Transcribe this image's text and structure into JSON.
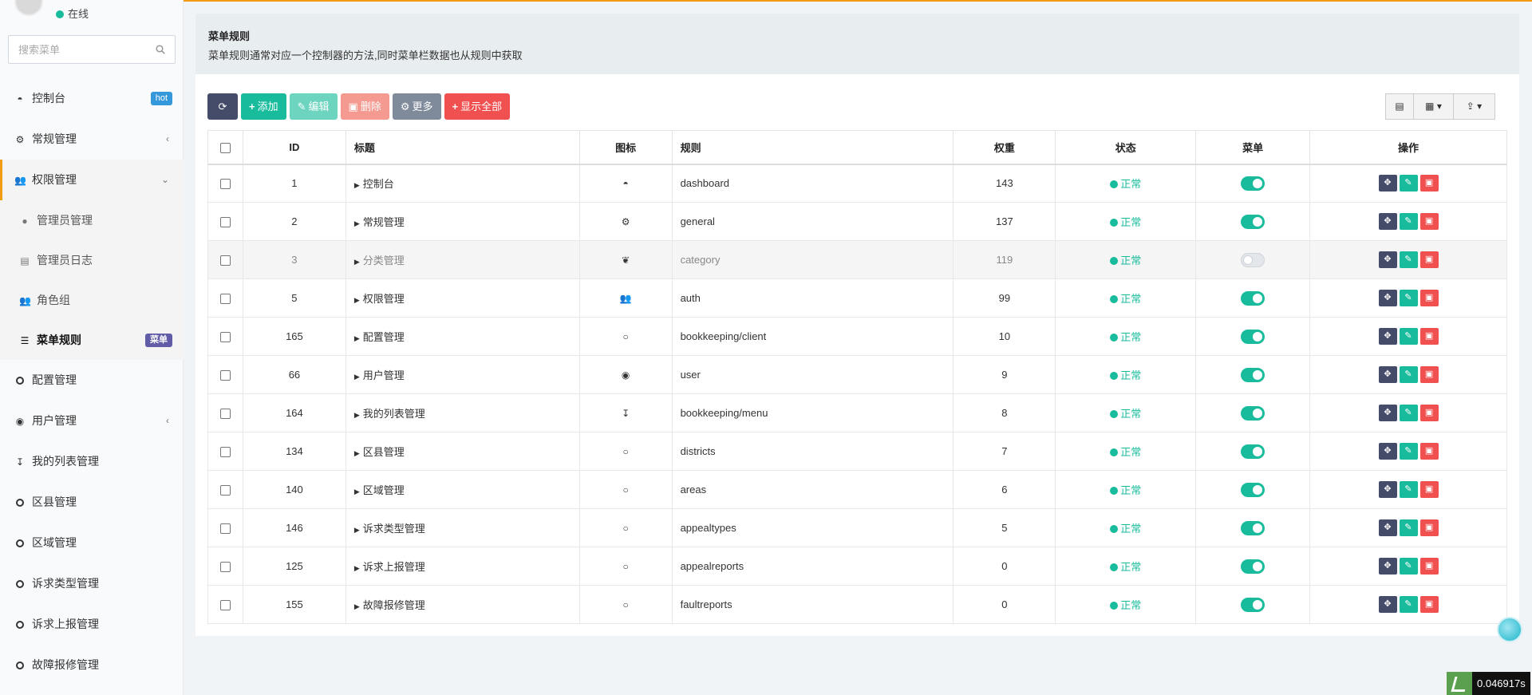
{
  "status": {
    "online": "在线"
  },
  "search": {
    "placeholder": "搜索菜单"
  },
  "sidebar": {
    "items": [
      {
        "label": "控制台",
        "badge": "hot",
        "icon": "dashboard-icon"
      },
      {
        "label": "常规管理",
        "arrow": "‹",
        "icon": "cogs-icon"
      },
      {
        "label": "权限管理",
        "arrow": "⌄",
        "icon": "group-icon"
      },
      {
        "label": "配置管理",
        "icon": "circle-icon"
      },
      {
        "label": "用户管理",
        "arrow": "‹",
        "icon": "user-circle-icon"
      },
      {
        "label": "我的列表管理",
        "icon": "sort-numeric-icon"
      },
      {
        "label": "区县管理",
        "icon": "circle-icon"
      },
      {
        "label": "区域管理",
        "icon": "circle-icon"
      },
      {
        "label": "诉求类型管理",
        "icon": "circle-icon"
      },
      {
        "label": "诉求上报管理",
        "icon": "circle-icon"
      },
      {
        "label": "故障报修管理",
        "icon": "circle-icon"
      }
    ],
    "sub": [
      {
        "label": "管理员管理",
        "icon": "user-icon"
      },
      {
        "label": "管理员日志",
        "icon": "list-alt-icon"
      },
      {
        "label": "角色组",
        "icon": "group-icon"
      },
      {
        "label": "菜单规则",
        "badge": "菜单",
        "icon": "bars-icon"
      }
    ]
  },
  "panel": {
    "title": "菜单规则",
    "desc": "菜单规则通常对应一个控制器的方法,同时菜单栏数据也从规则中获取"
  },
  "toolbar": {
    "add": "添加",
    "edit": "编辑",
    "delete": "删除",
    "more": "更多",
    "show_all": "显示全部"
  },
  "table": {
    "headers": {
      "id": "ID",
      "title": "标题",
      "icon": "图标",
      "rule": "规则",
      "weigh": "权重",
      "status": "状态",
      "menu": "菜单",
      "ops": "操作"
    },
    "rows": [
      {
        "id": "1",
        "title": "控制台",
        "icon": "dashboard-icon",
        "glyph": "◓",
        "rule": "dashboard",
        "weigh": "143",
        "status": "正常",
        "menu": true
      },
      {
        "id": "2",
        "title": "常规管理",
        "icon": "cogs-icon",
        "glyph": "⚙",
        "rule": "general",
        "weigh": "137",
        "status": "正常",
        "menu": true
      },
      {
        "id": "3",
        "title": "分类管理",
        "icon": "leaf-icon",
        "glyph": "❦",
        "rule": "category",
        "weigh": "119",
        "status": "正常",
        "menu": false
      },
      {
        "id": "5",
        "title": "权限管理",
        "icon": "group-icon",
        "glyph": "👥",
        "rule": "auth",
        "weigh": "99",
        "status": "正常",
        "menu": true
      },
      {
        "id": "165",
        "title": "配置管理",
        "icon": "circle-icon",
        "glyph": "○",
        "rule": "bookkeeping/client",
        "weigh": "10",
        "status": "正常",
        "menu": true
      },
      {
        "id": "66",
        "title": "用户管理",
        "icon": "user-circle-icon",
        "glyph": "◉",
        "rule": "user",
        "weigh": "9",
        "status": "正常",
        "menu": true
      },
      {
        "id": "164",
        "title": "我的列表管理",
        "icon": "sort-numeric-icon",
        "glyph": "↧",
        "rule": "bookkeeping/menu",
        "weigh": "8",
        "status": "正常",
        "menu": true
      },
      {
        "id": "134",
        "title": "区县管理",
        "icon": "circle-icon",
        "glyph": "○",
        "rule": "districts",
        "weigh": "7",
        "status": "正常",
        "menu": true
      },
      {
        "id": "140",
        "title": "区域管理",
        "icon": "circle-icon",
        "glyph": "○",
        "rule": "areas",
        "weigh": "6",
        "status": "正常",
        "menu": true
      },
      {
        "id": "146",
        "title": "诉求类型管理",
        "icon": "circle-icon",
        "glyph": "○",
        "rule": "appealtypes",
        "weigh": "5",
        "status": "正常",
        "menu": true
      },
      {
        "id": "125",
        "title": "诉求上报管理",
        "icon": "circle-icon",
        "glyph": "○",
        "rule": "appealreports",
        "weigh": "0",
        "status": "正常",
        "menu": true
      },
      {
        "id": "155",
        "title": "故障报修管理",
        "icon": "circle-icon",
        "glyph": "○",
        "rule": "faultreports",
        "weigh": "0",
        "status": "正常",
        "menu": true
      }
    ]
  },
  "footer": {
    "timer": "0.046917s"
  },
  "colors": {
    "accent": "#f39c12",
    "success": "#18bc9c",
    "danger": "#f05050",
    "dark": "#444c69"
  }
}
